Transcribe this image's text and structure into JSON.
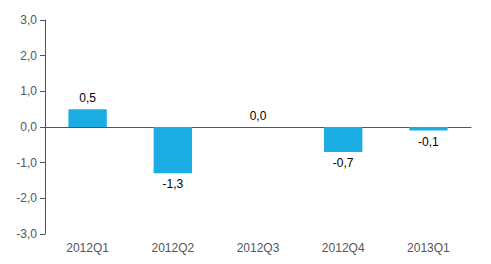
{
  "chart_data": {
    "type": "bar",
    "categories": [
      "2012Q1",
      "2012Q2",
      "2012Q3",
      "2012Q4",
      "2013Q1"
    ],
    "values": [
      0.5,
      -1.3,
      0.0,
      -0.7,
      -0.1
    ],
    "value_labels": [
      "0,5",
      "-1,3",
      "0,0",
      "-0,7",
      "-0,1"
    ],
    "data_labels": true,
    "color": "#1aace3",
    "ylim": [
      -3.0,
      3.0
    ],
    "yticks": [
      {
        "value": -3.0,
        "label": "-3,0"
      },
      {
        "value": -2.0,
        "label": "-2,0"
      },
      {
        "value": -1.0,
        "label": "-1,0"
      },
      {
        "value": 0.0,
        "label": "0,0"
      },
      {
        "value": 1.0,
        "label": "1,0"
      },
      {
        "value": 2.0,
        "label": "2,0"
      },
      {
        "value": 3.0,
        "label": "3,0"
      }
    ],
    "grid": false
  }
}
